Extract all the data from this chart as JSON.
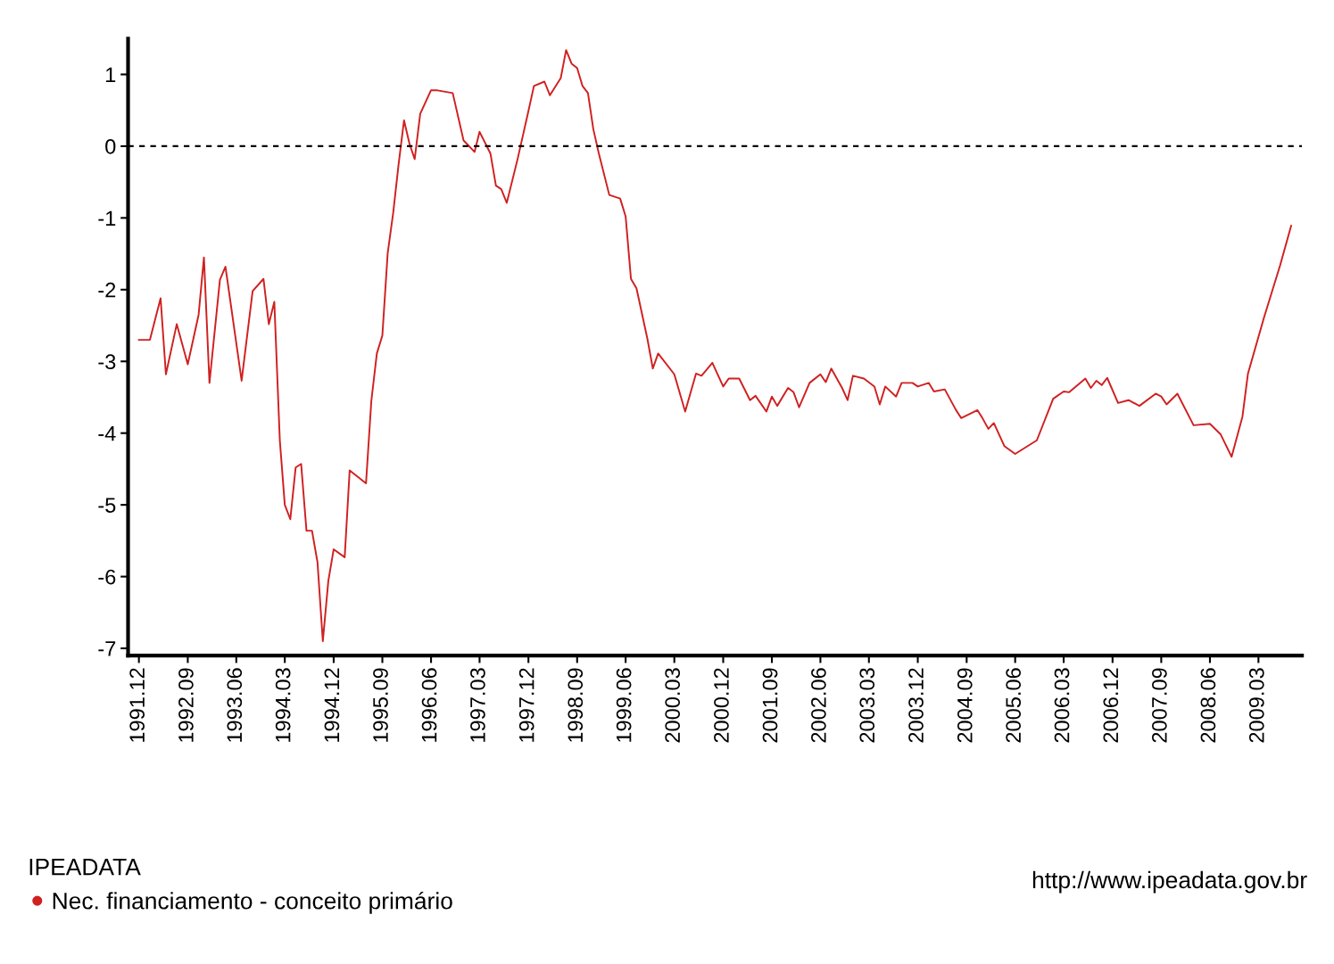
{
  "chart_data": {
    "type": "line",
    "x": [
      "1991-12",
      "1992-02",
      "1992-04",
      "1992-05",
      "1992-07",
      "1992-09",
      "1992-11",
      "1992-12",
      "1993-01",
      "1993-03",
      "1993-04",
      "1993-07",
      "1993-09",
      "1993-11",
      "1993-12",
      "1994-01",
      "1994-02",
      "1994-03",
      "1994-04",
      "1994-05",
      "1994-06",
      "1994-07",
      "1994-08",
      "1994-09",
      "1994-10",
      "1994-11",
      "1994-12",
      "1995-02",
      "1995-03",
      "1995-06",
      "1995-07",
      "1995-08",
      "1995-09",
      "1995-10",
      "1995-11",
      "1995-12",
      "1996-01",
      "1996-02",
      "1996-03",
      "1996-04",
      "1996-06",
      "1996-07",
      "1996-10",
      "1996-12",
      "1997-02",
      "1997-03",
      "1997-05",
      "1997-06",
      "1997-07",
      "1997-08",
      "1997-10",
      "1997-12",
      "1998-01",
      "1998-03",
      "1998-04",
      "1998-06",
      "1998-07",
      "1998-08",
      "1998-09",
      "1998-10",
      "1998-11",
      "1998-12",
      "1999-01",
      "1999-03",
      "1999-05",
      "1999-06",
      "1999-07",
      "1999-08",
      "1999-10",
      "1999-11",
      "1999-12",
      "2000-03",
      "2000-05",
      "2000-07",
      "2000-08",
      "2000-10",
      "2000-12",
      "2001-01",
      "2001-03",
      "2001-05",
      "2001-06",
      "2001-08",
      "2001-09",
      "2001-10",
      "2001-12",
      "2002-01",
      "2002-02",
      "2002-04",
      "2002-06",
      "2002-07",
      "2002-08",
      "2002-10",
      "2002-11",
      "2002-12",
      "2003-02",
      "2003-04",
      "2003-05",
      "2003-06",
      "2003-08",
      "2003-09",
      "2003-11",
      "2003-12",
      "2004-02",
      "2004-03",
      "2004-05",
      "2004-07",
      "2004-08",
      "2004-11",
      "2004-12",
      "2005-01",
      "2005-02",
      "2005-04",
      "2005-06",
      "2005-10",
      "2006-01",
      "2006-03",
      "2006-04",
      "2006-07",
      "2006-08",
      "2006-09",
      "2006-10",
      "2006-11",
      "2007-01",
      "2007-03",
      "2007-05",
      "2007-08",
      "2007-09",
      "2007-10",
      "2007-12",
      "2008-03",
      "2008-06",
      "2008-08",
      "2008-10",
      "2008-12",
      "2009-01",
      "2009-04",
      "2009-07",
      "2009-09"
    ],
    "series": [
      {
        "name": "Nec. financiamento - conceito primário",
        "color": "#d02020",
        "values": [
          -2.7,
          -2.7,
          -2.12,
          -3.18,
          -2.48,
          -3.04,
          -2.35,
          -1.55,
          -3.3,
          -1.86,
          -1.68,
          -3.27,
          -2.02,
          -1.85,
          -2.48,
          -2.17,
          -4.1,
          -5.0,
          -5.2,
          -4.48,
          -4.43,
          -5.36,
          -5.36,
          -5.8,
          -6.9,
          -6.06,
          -5.62,
          -5.73,
          -4.52,
          -4.7,
          -3.55,
          -2.89,
          -2.64,
          -1.49,
          -0.93,
          -0.26,
          0.36,
          0.03,
          -0.18,
          0.45,
          0.78,
          0.78,
          0.74,
          0.08,
          -0.08,
          0.2,
          -0.1,
          -0.55,
          -0.6,
          -0.79,
          -0.18,
          0.49,
          0.84,
          0.9,
          0.71,
          0.95,
          1.34,
          1.15,
          1.09,
          0.84,
          0.74,
          0.24,
          -0.1,
          -0.68,
          -0.73,
          -0.98,
          -1.85,
          -1.98,
          -2.68,
          -3.1,
          -2.89,
          -3.18,
          -3.7,
          -3.17,
          -3.2,
          -3.02,
          -3.35,
          -3.24,
          -3.24,
          -3.54,
          -3.48,
          -3.7,
          -3.49,
          -3.62,
          -3.37,
          -3.43,
          -3.64,
          -3.3,
          -3.18,
          -3.29,
          -3.1,
          -3.37,
          -3.54,
          -3.2,
          -3.24,
          -3.35,
          -3.6,
          -3.35,
          -3.49,
          -3.3,
          -3.3,
          -3.35,
          -3.3,
          -3.42,
          -3.39,
          -3.67,
          -3.79,
          -3.68,
          -3.8,
          -3.94,
          -3.86,
          -4.18,
          -4.29,
          -4.1,
          -3.52,
          -3.42,
          -3.43,
          -3.24,
          -3.37,
          -3.27,
          -3.33,
          -3.23,
          -3.58,
          -3.54,
          -3.62,
          -3.45,
          -3.49,
          -3.6,
          -3.45,
          -3.89,
          -3.87,
          -4.02,
          -4.33,
          -3.77,
          -3.17,
          -2.39,
          -1.66,
          -1.11
        ]
      }
    ],
    "xlim": [
      "1991-10",
      "2009-11"
    ],
    "xticks": [
      {
        "value": "1991-12",
        "label": "1991.12"
      },
      {
        "value": "1992-09",
        "label": "1992.09"
      },
      {
        "value": "1993-06",
        "label": "1993.06"
      },
      {
        "value": "1994-03",
        "label": "1994.03"
      },
      {
        "value": "1994-12",
        "label": "1994.12"
      },
      {
        "value": "1995-09",
        "label": "1995.09"
      },
      {
        "value": "1996-06",
        "label": "1996.06"
      },
      {
        "value": "1997-03",
        "label": "1997.03"
      },
      {
        "value": "1997-12",
        "label": "1997.12"
      },
      {
        "value": "1998-09",
        "label": "1998.09"
      },
      {
        "value": "1999-06",
        "label": "1999.06"
      },
      {
        "value": "2000-03",
        "label": "2000.03"
      },
      {
        "value": "2000-12",
        "label": "2000.12"
      },
      {
        "value": "2001-09",
        "label": "2001.09"
      },
      {
        "value": "2002-06",
        "label": "2002.06"
      },
      {
        "value": "2003-03",
        "label": "2003.03"
      },
      {
        "value": "2003-12",
        "label": "2003.12"
      },
      {
        "value": "2004-09",
        "label": "2004.09"
      },
      {
        "value": "2005-06",
        "label": "2005.06"
      },
      {
        "value": "2006-03",
        "label": "2006.03"
      },
      {
        "value": "2006-12",
        "label": "2006.12"
      },
      {
        "value": "2007-09",
        "label": "2007.09"
      },
      {
        "value": "2008-06",
        "label": "2008.06"
      },
      {
        "value": "2009-03",
        "label": "2009.03"
      }
    ],
    "ylim": [
      -7.1,
      1.5
    ],
    "yticks": [
      -7,
      -6,
      -5,
      -4,
      -3,
      -2,
      -1,
      0,
      1
    ],
    "ref_lines": [
      {
        "axis": "y",
        "value": 0,
        "color": "#000000",
        "line_style": "dashed"
      }
    ],
    "legend_title": "IPEADATA",
    "legend": "bottom left",
    "annotations": [
      "http://www.ipeadata.gov.br"
    ],
    "grid": false
  }
}
